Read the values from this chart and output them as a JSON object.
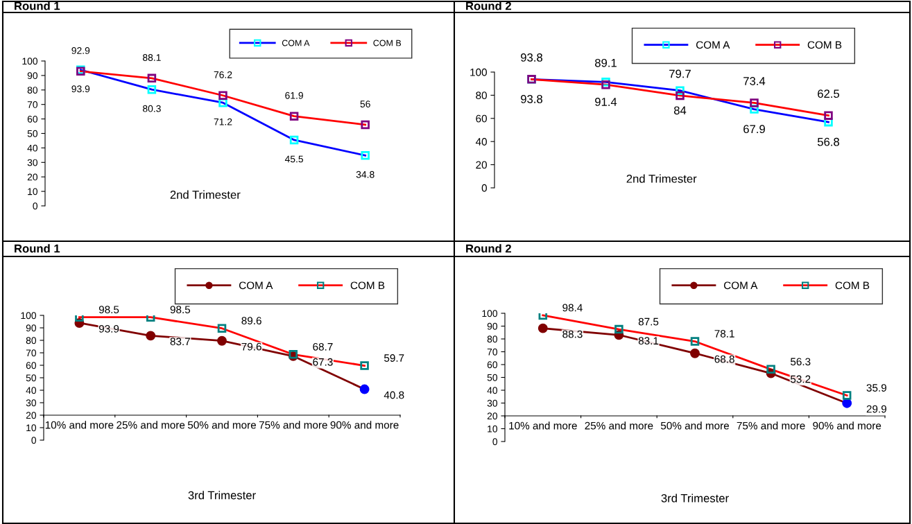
{
  "chart_data": [
    {
      "type": "line",
      "title": "Round 1",
      "xlabel": "2nd Trimester",
      "categories": [
        null,
        null,
        null,
        null,
        null
      ],
      "ylim": [
        0,
        100
      ],
      "yticks": [
        0,
        10,
        20,
        30,
        40,
        50,
        60,
        70,
        80,
        90,
        100
      ],
      "tick_labels": "y",
      "legend": "top right",
      "data_labels": true,
      "grid": false,
      "series": [
        {
          "name": "COM A",
          "color": "#0000ff",
          "marker": "square",
          "colors": [
            "#00ffff",
            "#00ffff",
            "#00ffff",
            "#00ffff",
            "#00ffff"
          ],
          "values": [
            93.9,
            80.3,
            71.2,
            45.5,
            34.8
          ]
        },
        {
          "name": "COM B",
          "color": "#ff0000",
          "marker": "square",
          "colors": [
            "#800080",
            "#800080",
            "#800080",
            "#800080",
            "#800080"
          ],
          "values": [
            92.9,
            88.1,
            76.2,
            61.9,
            56
          ]
        }
      ]
    },
    {
      "type": "line",
      "title": "Round 2",
      "xlabel": "2nd Trimester",
      "categories": [
        null,
        null,
        null,
        null,
        null
      ],
      "ylim": [
        0,
        100
      ],
      "yticks": [
        0,
        20,
        40,
        60,
        80,
        100
      ],
      "tick_labels": "y",
      "legend": "top right",
      "data_labels": true,
      "grid": false,
      "series": [
        {
          "name": "COM A",
          "color": "#0000ff",
          "marker": "square",
          "colors": [
            "#00ffff",
            "#00ffff",
            "#00ffff",
            "#00ffff",
            "#00ffff"
          ],
          "values": [
            93.8,
            91.4,
            84,
            67.9,
            56.8
          ]
        },
        {
          "name": "COM B",
          "color": "#ff0000",
          "marker": "square",
          "colors": [
            "#800080",
            "#800080",
            "#800080",
            "#800080",
            "#800080"
          ],
          "values": [
            93.8,
            89.1,
            79.7,
            73.4,
            62.5
          ]
        }
      ]
    },
    {
      "type": "line",
      "title": "Round 1",
      "xlabel": "3rd Trimester",
      "categories": [
        "10% and more",
        "25% and more",
        "50% and more",
        "75% and more",
        "90% and more"
      ],
      "ylim": [
        0,
        100
      ],
      "yticks": [
        0,
        10,
        20,
        30,
        40,
        50,
        60,
        70,
        80,
        90,
        100
      ],
      "legend": "top right",
      "data_labels": true,
      "grid": false,
      "series": [
        {
          "name": "COM A",
          "color": "#800000",
          "marker": "circle",
          "colors": [
            "#800000",
            "#800000",
            "#800000",
            "#800000",
            "#0000ff"
          ],
          "values": [
            93.9,
            83.7,
            79.6,
            67.3,
            40.8
          ]
        },
        {
          "name": "COM B",
          "color": "#ff0000",
          "marker": "square",
          "colors": [
            "#008080",
            "#008080",
            "#008080",
            "#008080",
            "#008080"
          ],
          "values": [
            98.5,
            98.5,
            89.6,
            68.7,
            59.7
          ]
        }
      ]
    },
    {
      "type": "line",
      "title": "Round 2",
      "xlabel": "3rd Trimester",
      "categories": [
        "10% and more",
        "25% and more",
        "50% and more",
        "75% and more",
        "90% and more"
      ],
      "ylim": [
        0,
        100
      ],
      "yticks": [
        0,
        10,
        20,
        30,
        40,
        50,
        60,
        70,
        80,
        90,
        100
      ],
      "legend": "top right",
      "data_labels": true,
      "grid": false,
      "series": [
        {
          "name": "COM A",
          "color": "#800000",
          "marker": "circle",
          "colors": [
            "#800000",
            "#800000",
            "#800000",
            "#800000",
            "#0000ff"
          ],
          "values": [
            88.3,
            83.1,
            68.8,
            53.2,
            29.9
          ]
        },
        {
          "name": "COM B",
          "color": "#ff0000",
          "marker": "square",
          "colors": [
            "#008080",
            "#008080",
            "#008080",
            "#008080",
            "#008080"
          ],
          "values": [
            98.4,
            87.5,
            78.1,
            56.3,
            35.9
          ]
        }
      ]
    }
  ]
}
